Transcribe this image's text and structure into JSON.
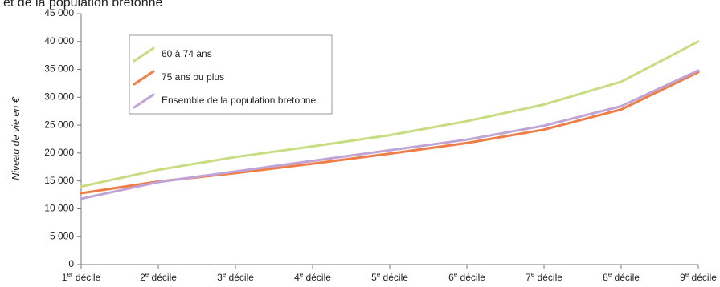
{
  "chart_data": {
    "type": "line",
    "title": "et de la population bretonne",
    "ylabel": "Niveau de vie en €",
    "xlabel": "",
    "ylim": [
      0,
      45000
    ],
    "ytick_values": [
      0,
      5000,
      10000,
      15000,
      20000,
      25000,
      30000,
      35000,
      40000,
      45000
    ],
    "ytick_labels": [
      "0",
      "5 000",
      "10 000",
      "15 000",
      "20 000",
      "25 000",
      "30 000",
      "35 000",
      "40 000",
      "45 000"
    ],
    "categories": [
      {
        "base": "1",
        "sup": "er",
        "rest": " décile"
      },
      {
        "base": "2",
        "sup": "e",
        "rest": " décile"
      },
      {
        "base": "3",
        "sup": "e",
        "rest": " décile"
      },
      {
        "base": "4",
        "sup": "e",
        "rest": " décile"
      },
      {
        "base": "5",
        "sup": "e",
        "rest": " décile"
      },
      {
        "base": "6",
        "sup": "e",
        "rest": " décile"
      },
      {
        "base": "7",
        "sup": "e",
        "rest": " décile"
      },
      {
        "base": "8",
        "sup": "e",
        "rest": " décile"
      },
      {
        "base": "9",
        "sup": "e",
        "rest": " décile"
      }
    ],
    "series": [
      {
        "name": "60 à 74 ans",
        "color": "#c8dc82",
        "values": [
          14000,
          17000,
          19300,
          21200,
          23200,
          25700,
          28700,
          32800,
          40000
        ]
      },
      {
        "name": "75 ans ou plus",
        "color": "#ee7d46",
        "values": [
          12800,
          14900,
          16400,
          18100,
          19900,
          21800,
          24200,
          27800,
          34500
        ]
      },
      {
        "name": "Ensemble de la population bretonne",
        "color": "#c0a4d6",
        "values": [
          11800,
          14800,
          16700,
          18600,
          20500,
          22400,
          24900,
          28400,
          34800
        ]
      }
    ],
    "grid": false,
    "legend_position": "top-left"
  }
}
